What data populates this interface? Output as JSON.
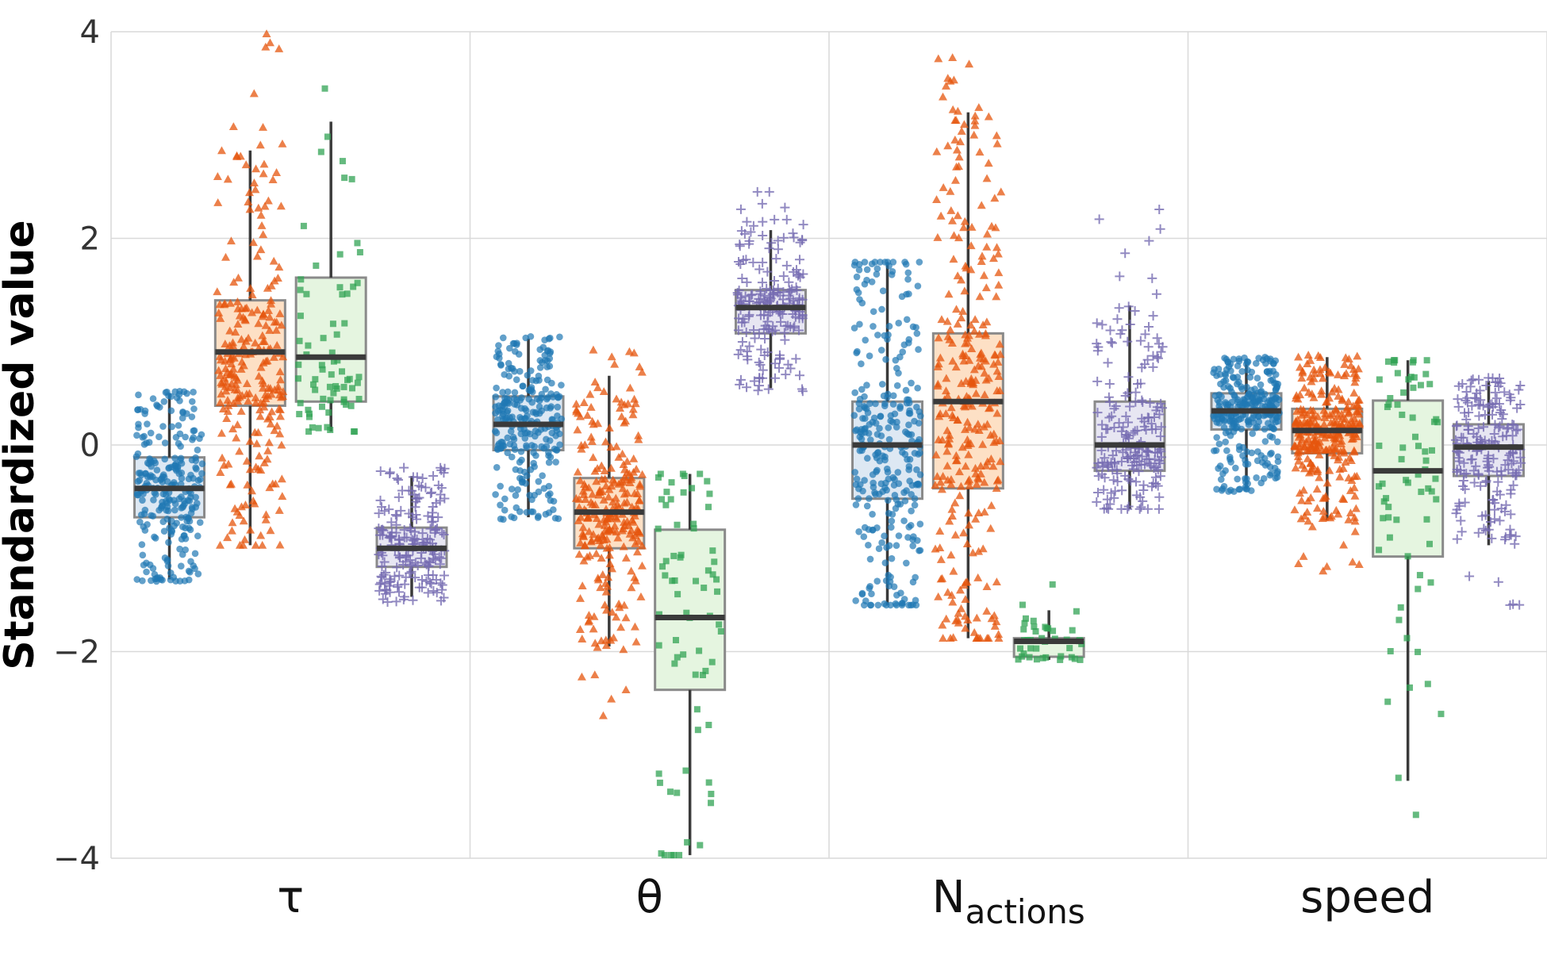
{
  "chart_data": {
    "type": "box",
    "title": "",
    "xlabel": "",
    "ylabel": "Standardized value",
    "ylim": [
      -4,
      4
    ],
    "yticks": [
      4,
      2,
      0,
      -2,
      -4
    ],
    "ytick_labels": [
      "4",
      "2",
      "0",
      "−2",
      "−4"
    ],
    "grid": true,
    "categories": [
      {
        "label": "τ",
        "sub": ""
      },
      {
        "label": "θ",
        "sub": ""
      },
      {
        "label": "N",
        "sub": "actions"
      },
      {
        "label": "speed",
        "sub": ""
      }
    ],
    "series": [
      {
        "marker": "circle",
        "color": "#1f77b4",
        "fill": "#dde8f3",
        "boxes": [
          {
            "whislo": -1.3,
            "q1": -0.7,
            "med": -0.42,
            "q3": -0.12,
            "whishi": 0.5,
            "n": 260,
            "pmin": -1.32,
            "pmax": 0.52
          },
          {
            "whislo": -0.7,
            "q1": -0.05,
            "med": 0.2,
            "q3": 0.47,
            "whishi": 1.03,
            "n": 260,
            "pmin": -0.72,
            "pmax": 1.05
          },
          {
            "whislo": -1.55,
            "q1": -0.52,
            "med": 0.0,
            "q3": 0.42,
            "whishi": 1.77,
            "n": 300,
            "pmin": -1.55,
            "pmax": 1.77
          },
          {
            "whislo": -0.42,
            "q1": 0.15,
            "med": 0.33,
            "q3": 0.5,
            "whishi": 0.83,
            "n": 300,
            "pmin": -0.45,
            "pmax": 0.85
          }
        ]
      },
      {
        "marker": "triangle",
        "color": "#e6550d",
        "fill": "#fde0c5",
        "boxes": [
          {
            "whislo": -0.97,
            "q1": 0.38,
            "med": 0.9,
            "q3": 1.4,
            "whishi": 2.85,
            "n": 260,
            "pmin": -0.97,
            "pmax": 3.98
          },
          {
            "whislo": -1.95,
            "q1": -1.0,
            "med": -0.65,
            "q3": -0.32,
            "whishi": 0.67,
            "n": 260,
            "pmin": -2.62,
            "pmax": 0.92
          },
          {
            "whislo": -1.87,
            "q1": -0.42,
            "med": 0.42,
            "q3": 1.08,
            "whishi": 3.22,
            "n": 300,
            "pmin": -1.87,
            "pmax": 3.75
          },
          {
            "whislo": -0.73,
            "q1": -0.08,
            "med": 0.14,
            "q3": 0.35,
            "whishi": 0.85,
            "n": 280,
            "pmin": -1.22,
            "pmax": 0.87
          }
        ]
      },
      {
        "marker": "square",
        "color": "#31a354",
        "fill": "#e5f5e0",
        "boxes": [
          {
            "whislo": 0.13,
            "q1": 0.42,
            "med": 0.85,
            "q3": 1.62,
            "whishi": 3.13,
            "n": 70,
            "pmin": 0.13,
            "pmax": 3.45
          },
          {
            "whislo": -3.97,
            "q1": -2.37,
            "med": -1.67,
            "q3": -0.82,
            "whishi": -0.28,
            "n": 70,
            "pmin": -3.97,
            "pmax": -0.28
          },
          {
            "whislo": -2.08,
            "q1": -2.05,
            "med": -1.9,
            "q3": -1.87,
            "whishi": -1.6,
            "n": 40,
            "pmin": -2.08,
            "pmax": -1.35
          },
          {
            "whislo": -3.25,
            "q1": -1.08,
            "med": -0.25,
            "q3": 0.43,
            "whishi": 0.82,
            "n": 70,
            "pmin": -3.58,
            "pmax": 0.82
          }
        ]
      },
      {
        "marker": "plus",
        "color": "#756bb1",
        "fill": "#e7e6f2",
        "boxes": [
          {
            "whislo": -1.47,
            "q1": -1.18,
            "med": -1.0,
            "q3": -0.8,
            "whishi": -0.3,
            "n": 200,
            "pmin": -1.52,
            "pmax": -0.22
          },
          {
            "whislo": 0.55,
            "q1": 1.08,
            "med": 1.33,
            "q3": 1.5,
            "whishi": 2.08,
            "n": 200,
            "pmin": 0.52,
            "pmax": 2.45
          },
          {
            "whislo": -0.62,
            "q1": -0.25,
            "med": 0.0,
            "q3": 0.42,
            "whishi": 1.35,
            "n": 200,
            "pmin": -0.62,
            "pmax": 2.28
          },
          {
            "whislo": -0.97,
            "q1": -0.3,
            "med": -0.02,
            "q3": 0.2,
            "whishi": 0.62,
            "n": 200,
            "pmin": -1.55,
            "pmax": 0.65
          }
        ]
      }
    ]
  }
}
